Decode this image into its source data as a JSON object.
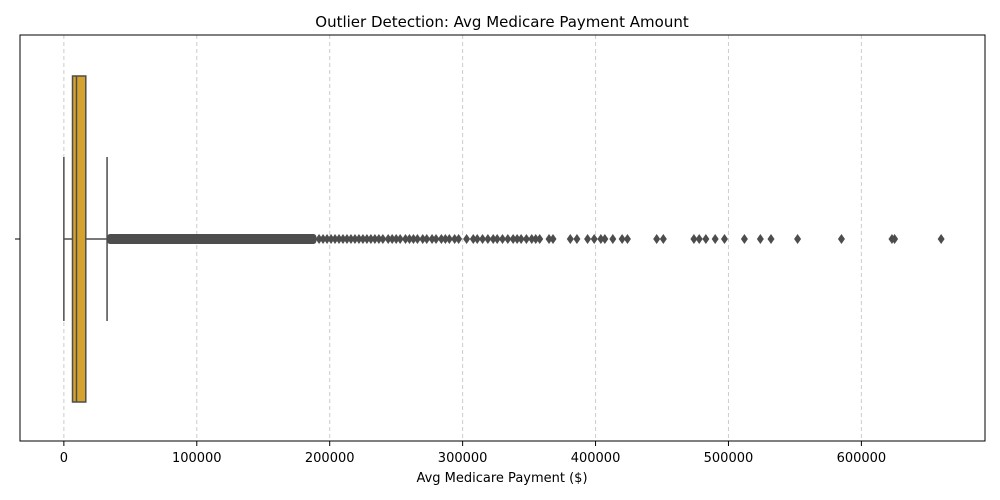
{
  "chart_data": {
    "type": "box",
    "title": "Outlier Detection: Avg Medicare Payment Amount",
    "xlabel": "Avg Medicare Payment ($)",
    "ylabel": "",
    "xlim": [
      -33000,
      693000
    ],
    "xticks": [
      0,
      100000,
      200000,
      300000,
      400000,
      500000,
      600000
    ],
    "xtick_labels": [
      "0",
      "100000",
      "200000",
      "300000",
      "400000",
      "500000",
      "600000"
    ],
    "grid": "x-dashed",
    "orientation": "horizontal",
    "box_color": "#d4a22d",
    "edge_color": "#4d4d4d",
    "box": {
      "whisker_low": 0,
      "q1": 6500,
      "median": 9500,
      "q3": 16500,
      "whisker_high": 32500
    },
    "outliers_dense_range": [
      32500,
      190000
    ],
    "outliers": [
      192000,
      195000,
      198000,
      201000,
      204000,
      207000,
      210000,
      213000,
      216000,
      219000,
      222000,
      225000,
      228000,
      231000,
      234000,
      237000,
      240000,
      244000,
      247000,
      250000,
      253000,
      257000,
      260000,
      263000,
      266000,
      270000,
      273000,
      277000,
      280000,
      284000,
      287000,
      290000,
      294000,
      297000,
      303000,
      308000,
      311000,
      315000,
      319000,
      323000,
      326000,
      330000,
      334000,
      338000,
      341000,
      344000,
      348000,
      352000,
      355000,
      358000,
      365000,
      368000,
      381000,
      386000,
      394000,
      399000,
      404000,
      407000,
      413000,
      420000,
      424000,
      446000,
      451000,
      474000,
      478000,
      483000,
      490000,
      497000,
      512000,
      524000,
      532000,
      552000,
      585000,
      623000,
      625000,
      660000
    ]
  }
}
